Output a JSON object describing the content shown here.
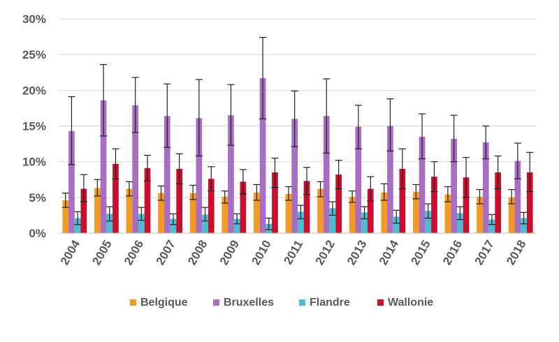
{
  "chart_data": {
    "type": "bar",
    "categories": [
      "2004",
      "2005",
      "2006",
      "2007",
      "2008",
      "2009",
      "2010",
      "2011",
      "2012",
      "2013",
      "2014",
      "2015",
      "2016",
      "2017",
      "2018"
    ],
    "y_ticks": [
      "0%",
      "5%",
      "10%",
      "15%",
      "20%",
      "25%",
      "30%"
    ],
    "ylim": [
      0,
      30
    ],
    "grid": true,
    "legend_position": "bottom",
    "series": [
      {
        "name": "Belgique",
        "color": "#f59a23",
        "values": [
          4.6,
          6.3,
          6.2,
          5.6,
          5.6,
          5.1,
          5.7,
          5.5,
          6.2,
          5.1,
          5.7,
          5.8,
          5.4,
          5.1,
          5.0
        ],
        "error_low": [
          3.6,
          5.2,
          5.2,
          4.6,
          4.7,
          4.2,
          4.6,
          4.6,
          5.1,
          4.3,
          4.6,
          4.8,
          4.4,
          4.1,
          4.1
        ],
        "error_high": [
          5.6,
          7.5,
          7.2,
          6.6,
          6.7,
          5.9,
          6.8,
          6.5,
          7.2,
          5.9,
          6.9,
          6.8,
          6.5,
          6.1,
          6.1
        ]
      },
      {
        "name": "Bruxelles",
        "color": "#a86ec1",
        "values": [
          14.3,
          18.6,
          17.9,
          16.4,
          16.1,
          16.5,
          21.7,
          16.0,
          16.4,
          14.9,
          15.0,
          13.5,
          13.2,
          12.7,
          10.1
        ],
        "error_low": [
          9.6,
          13.6,
          14.1,
          12.0,
          10.8,
          12.3,
          16.0,
          12.1,
          11.2,
          11.8,
          11.5,
          10.4,
          10.0,
          10.4,
          7.6
        ],
        "error_high": [
          19.1,
          23.6,
          21.8,
          20.9,
          21.5,
          20.8,
          27.4,
          19.9,
          21.6,
          17.9,
          18.8,
          16.7,
          16.5,
          15.0,
          12.6
        ]
      },
      {
        "name": "Flandre",
        "color": "#4bbcd2",
        "values": [
          2.1,
          2.7,
          2.7,
          2.0,
          2.6,
          2.0,
          1.3,
          3.0,
          3.5,
          2.9,
          2.3,
          3.1,
          2.8,
          1.9,
          2.1
        ],
        "error_low": [
          1.2,
          1.7,
          1.8,
          1.2,
          1.7,
          1.3,
          0.5,
          2.0,
          2.5,
          2.0,
          1.4,
          2.1,
          1.9,
          1.2,
          1.3
        ],
        "error_high": [
          3.0,
          3.7,
          3.6,
          2.7,
          3.6,
          2.7,
          2.1,
          3.9,
          4.4,
          3.7,
          3.2,
          4.1,
          3.7,
          2.6,
          2.9
        ]
      },
      {
        "name": "Wallonie",
        "color": "#c8102e",
        "values": [
          6.2,
          9.7,
          9.1,
          9.0,
          7.6,
          7.2,
          8.5,
          7.3,
          8.2,
          6.2,
          9.0,
          7.9,
          7.8,
          8.5,
          8.5
        ],
        "error_low": [
          4.4,
          7.6,
          7.3,
          6.9,
          5.9,
          5.5,
          6.4,
          5.4,
          6.2,
          4.5,
          6.2,
          5.8,
          5.0,
          6.2,
          5.8
        ],
        "error_high": [
          8.2,
          11.8,
          10.9,
          11.1,
          9.3,
          8.9,
          10.5,
          9.2,
          10.2,
          7.9,
          11.8,
          10.0,
          10.6,
          10.8,
          11.3
        ]
      }
    ]
  }
}
